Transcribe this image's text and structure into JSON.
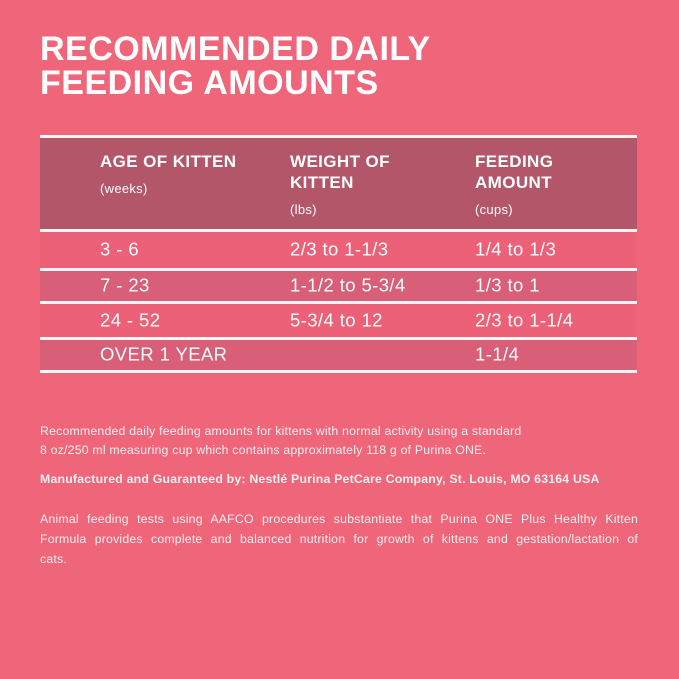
{
  "label": {
    "title_line1": "RECOMMENDED DAILY",
    "title_line2": "FEEDING AMOUNTS"
  },
  "table": {
    "headers": [
      {
        "title": "AGE OF KITTEN",
        "unit": "(weeks)"
      },
      {
        "title": "WEIGHT OF KITTEN",
        "unit": "(lbs)"
      },
      {
        "title": "FEEDING AMOUNT",
        "unit": "(cups)"
      }
    ],
    "rows": [
      {
        "age": "3 - 6",
        "weight": "2/3 to 1-1/3",
        "amount": "1/4 to 1/3"
      },
      {
        "age": "7 - 23",
        "weight": "1-1/2 to 5-3/4",
        "amount": "1/3 to 1"
      },
      {
        "age": "24 - 52",
        "weight": "5-3/4 to 12",
        "amount": "2/3 to 1-1/4"
      },
      {
        "age": "OVER 1 YEAR",
        "weight": "",
        "amount": "1-1/4"
      }
    ]
  },
  "notes": {
    "feeding_note": {
      "line1": "Recommended daily feeding amounts for kittens with normal activity using a standard",
      "line2": "8 oz/250 ml measuring cup which contains approximately 118 g of Purina ONE."
    },
    "manufacturer": "Manufactured and Guaranteed by: Nestlé Purina PetCare Company, St. Louis, MO 63164 USA",
    "aafco": {
      "line1": "Animal feeding tests using AAFCO procedures substantiate that Purina ONE Plus Healthy Kitten",
      "line2": "Formula provides complete and balanced nutrition for growth of kittens and gestation/lactation of",
      "line3": "cats."
    }
  },
  "colors": {
    "background": "#EF6579",
    "row_light": "#EC6078",
    "row_dark": "#D95E77",
    "header_band": "#B3566A",
    "divider": "#FBF5F5",
    "text": "#FFFFFF"
  }
}
